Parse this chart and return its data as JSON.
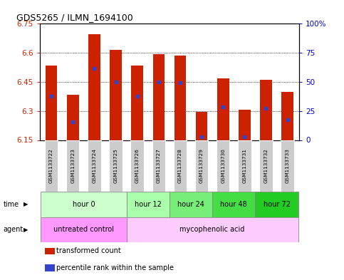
{
  "title": "GDS5265 / ILMN_1694100",
  "samples": [
    "GSM1133722",
    "GSM1133723",
    "GSM1133724",
    "GSM1133725",
    "GSM1133726",
    "GSM1133727",
    "GSM1133728",
    "GSM1133729",
    "GSM1133730",
    "GSM1133731",
    "GSM1133732",
    "GSM1133733"
  ],
  "bar_bottoms": [
    6.15,
    6.15,
    6.15,
    6.15,
    6.15,
    6.15,
    6.15,
    6.15,
    6.15,
    6.15,
    6.15,
    6.15
  ],
  "bar_tops": [
    6.535,
    6.385,
    6.695,
    6.615,
    6.535,
    6.595,
    6.585,
    6.295,
    6.47,
    6.305,
    6.46,
    6.4
  ],
  "percentile_values": [
    6.375,
    6.245,
    6.52,
    6.45,
    6.375,
    6.45,
    6.445,
    6.165,
    6.32,
    6.165,
    6.315,
    6.255
  ],
  "ylim_left": [
    6.15,
    6.75
  ],
  "ylim_right": [
    0,
    100
  ],
  "yticks_left": [
    6.15,
    6.3,
    6.45,
    6.6,
    6.75
  ],
  "ytick_left_labels": [
    "6.15",
    "6.3",
    "6.45",
    "6.6",
    "6.75"
  ],
  "yticks_right": [
    0,
    25,
    50,
    75,
    100
  ],
  "ytick_right_labels": [
    "0",
    "25",
    "50",
    "75",
    "100%"
  ],
  "bar_color": "#cc2200",
  "percentile_color": "#3344cc",
  "grid_color": "#000000",
  "bg_color": "#ffffff",
  "plot_bg": "#ffffff",
  "time_groups": [
    {
      "label": "hour 0",
      "start": 0,
      "end": 3,
      "color": "#ccffcc"
    },
    {
      "label": "hour 12",
      "start": 4,
      "end": 5,
      "color": "#aaffaa"
    },
    {
      "label": "hour 24",
      "start": 6,
      "end": 7,
      "color": "#77ee77"
    },
    {
      "label": "hour 48",
      "start": 8,
      "end": 9,
      "color": "#44dd44"
    },
    {
      "label": "hour 72",
      "start": 10,
      "end": 11,
      "color": "#22cc22"
    }
  ],
  "agent_groups": [
    {
      "label": "untreated control",
      "start": 0,
      "end": 3,
      "color": "#ff99ff"
    },
    {
      "label": "mycophenolic acid",
      "start": 4,
      "end": 11,
      "color": "#ffccff"
    }
  ],
  "legend_items": [
    {
      "label": "transformed count",
      "color": "#cc2200"
    },
    {
      "label": "percentile rank within the sample",
      "color": "#3344cc"
    }
  ],
  "left_axis_color": "#cc2200",
  "right_axis_color": "#0000cc",
  "bar_width": 0.55,
  "sample_bg_color": "#cccccc"
}
